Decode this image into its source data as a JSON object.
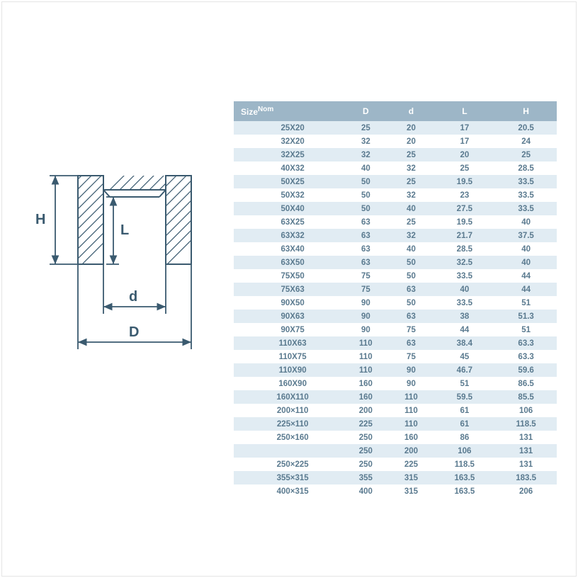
{
  "diagram": {
    "labels": {
      "H": "H",
      "L": "L",
      "d": "d",
      "D": "D"
    },
    "line_color": "#3a5a6f",
    "text_color": "#3a5a6f",
    "hatch_spacing": 7
  },
  "table": {
    "header_bg": "#9db6c7",
    "row_odd_bg": "#e1ecf3",
    "row_even_bg": "#ffffff",
    "header_text_color": "#ffffff",
    "cell_text_color": "#5a7a8f",
    "columns": [
      {
        "key": "size",
        "label": "Size",
        "sup": "Nom"
      },
      {
        "key": "D",
        "label": "D"
      },
      {
        "key": "d",
        "label": "d"
      },
      {
        "key": "L",
        "label": "L"
      },
      {
        "key": "H",
        "label": "H"
      }
    ],
    "rows": [
      [
        "25X20",
        "25",
        "20",
        "17",
        "20.5"
      ],
      [
        "32X20",
        "32",
        "20",
        "17",
        "24"
      ],
      [
        "32X25",
        "32",
        "25",
        "20",
        "25"
      ],
      [
        "40X32",
        "40",
        "32",
        "25",
        "28.5"
      ],
      [
        "50X25",
        "50",
        "25",
        "19.5",
        "33.5"
      ],
      [
        "50X32",
        "50",
        "32",
        "23",
        "33.5"
      ],
      [
        "50X40",
        "50",
        "40",
        "27.5",
        "33.5"
      ],
      [
        "63X25",
        "63",
        "25",
        "19.5",
        "40"
      ],
      [
        "63X32",
        "63",
        "32",
        "21.7",
        "37.5"
      ],
      [
        "63X40",
        "63",
        "40",
        "28.5",
        "40"
      ],
      [
        "63X50",
        "63",
        "50",
        "32.5",
        "40"
      ],
      [
        "75X50",
        "75",
        "50",
        "33.5",
        "44"
      ],
      [
        "75X63",
        "75",
        "63",
        "40",
        "44"
      ],
      [
        "90X50",
        "90",
        "50",
        "33.5",
        "51"
      ],
      [
        "90X63",
        "90",
        "63",
        "38",
        "51.3"
      ],
      [
        "90X75",
        "90",
        "75",
        "44",
        "51"
      ],
      [
        "110X63",
        "110",
        "63",
        "38.4",
        "63.3"
      ],
      [
        "110X75",
        "110",
        "75",
        "45",
        "63.3"
      ],
      [
        "110X90",
        "110",
        "90",
        "46.7",
        "59.6"
      ],
      [
        "160X90",
        "160",
        "90",
        "51",
        "86.5"
      ],
      [
        "160X110",
        "160",
        "110",
        "59.5",
        "85.5"
      ],
      [
        "200×110",
        "200",
        "110",
        "61",
        "106"
      ],
      [
        "225×110",
        "225",
        "110",
        "61",
        "118.5"
      ],
      [
        "250×160",
        "250",
        "160",
        "86",
        "131"
      ],
      [
        "",
        "250",
        "200",
        "106",
        "131"
      ],
      [
        "250×225",
        "250",
        "225",
        "118.5",
        "131"
      ],
      [
        "355×315",
        "355",
        "315",
        "163.5",
        "183.5"
      ],
      [
        "400×315",
        "400",
        "315",
        "163.5",
        "206"
      ]
    ]
  }
}
